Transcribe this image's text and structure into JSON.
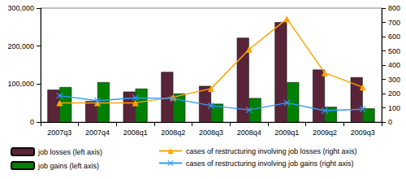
{
  "chart_data": {
    "type": "bar",
    "categories": [
      "2007q3",
      "2007q4",
      "2008q1",
      "2008q2",
      "2008q3",
      "2008q4",
      "2009q1",
      "2009q2",
      "2009q3"
    ],
    "series": [
      {
        "name": "job losses (left axis)",
        "type": "bar",
        "color": "#5a2438",
        "values": [
          85000,
          55000,
          80000,
          132000,
          95000,
          222000,
          263000,
          138000,
          118000
        ]
      },
      {
        "name": "job gains (left axis)",
        "type": "bar",
        "color": "#008000",
        "values": [
          92000,
          105000,
          88000,
          75000,
          48000,
          63000,
          105000,
          40000,
          36000
        ]
      },
      {
        "name": "cases of restructuring involving job losses (right axis)",
        "type": "line",
        "axis": "y2",
        "color": "#ffa500",
        "marker": "triangle",
        "values": [
          135,
          135,
          135,
          175,
          235,
          510,
          725,
          345,
          245
        ]
      },
      {
        "name": "cases of restructuring involving job gains (right axis)",
        "type": "line",
        "axis": "y2",
        "color": "#3399ff",
        "marker": "cross",
        "values": [
          185,
          150,
          170,
          165,
          115,
          85,
          135,
          80,
          90
        ]
      }
    ],
    "ylim": [
      0,
      300000
    ],
    "yticks": [
      0,
      {
        "value": 100000,
        "label": "100,000"
      },
      {
        "value": 200000,
        "label": "200,000"
      },
      {
        "value": 300000,
        "label": "300,000"
      }
    ],
    "y2lim": [
      0,
      800
    ],
    "y2ticks": [
      0,
      100,
      200,
      300,
      400,
      500,
      600,
      700,
      800
    ],
    "grid": false,
    "legend": "bottom"
  }
}
